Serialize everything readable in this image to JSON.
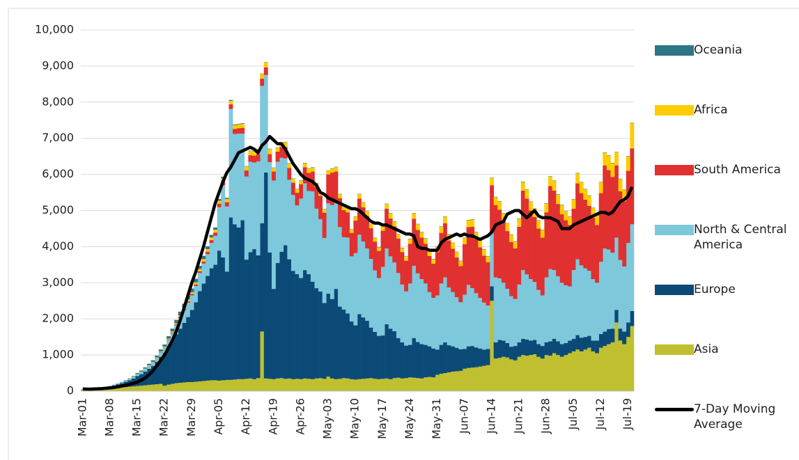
{
  "chart_data": {
    "type": "bar",
    "stacked": true,
    "categories": [
      "Mar-01",
      null,
      null,
      null,
      null,
      null,
      null,
      "Mar-08",
      null,
      null,
      null,
      null,
      null,
      null,
      "Mar-15",
      null,
      null,
      null,
      null,
      null,
      null,
      "Mar-22",
      null,
      null,
      null,
      null,
      null,
      null,
      "Mar-29",
      null,
      null,
      null,
      null,
      null,
      null,
      "Apr-05",
      null,
      null,
      null,
      null,
      null,
      null,
      "Apr-12",
      null,
      null,
      null,
      null,
      null,
      null,
      "Apr-19",
      null,
      null,
      null,
      null,
      null,
      null,
      "Apr-26",
      null,
      null,
      null,
      null,
      null,
      null,
      "May-03",
      null,
      null,
      null,
      null,
      null,
      null,
      "May-10",
      null,
      null,
      null,
      null,
      null,
      null,
      "May-17",
      null,
      null,
      null,
      null,
      null,
      null,
      "May-24",
      null,
      null,
      null,
      null,
      null,
      null,
      "May-31",
      null,
      null,
      null,
      null,
      null,
      null,
      "Jun-07",
      null,
      null,
      null,
      null,
      null,
      null,
      "Jun-14",
      null,
      null,
      null,
      null,
      null,
      null,
      "Jun-21",
      null,
      null,
      null,
      null,
      null,
      null,
      "Jun-28",
      null,
      null,
      null,
      null,
      null,
      null,
      "Jul-05",
      null,
      null,
      null,
      null,
      null,
      null,
      "Jul-12",
      null,
      null,
      null,
      null,
      null,
      null,
      "Jul-19",
      null
    ],
    "series": [
      {
        "name": "Asia",
        "color": "#bfbf30",
        "values": [
          50,
          45,
          45,
          50,
          55,
          60,
          60,
          70,
          80,
          90,
          100,
          110,
          120,
          130,
          140,
          150,
          160,
          170,
          180,
          190,
          200,
          150,
          180,
          200,
          220,
          230,
          240,
          250,
          250,
          260,
          270,
          280,
          290,
          300,
          300,
          290,
          300,
          310,
          310,
          320,
          330,
          330,
          340,
          350,
          330,
          360,
          1650,
          350,
          340,
          330,
          350,
          360,
          340,
          350,
          330,
          340,
          330,
          350,
          340,
          330,
          350,
          360,
          340,
          400,
          350,
          330,
          340,
          360,
          350,
          330,
          320,
          330,
          340,
          350,
          360,
          340,
          330,
          340,
          350,
          330,
          360,
          370,
          350,
          360,
          380,
          370,
          360,
          350,
          380,
          390,
          380,
          450,
          480,
          500,
          520,
          540,
          550,
          560,
          620,
          640,
          650,
          660,
          680,
          700,
          720,
          2500,
          900,
          920,
          950,
          930,
          880,
          850,
          950,
          1000,
          980,
          1000,
          1020,
          950,
          900,
          1000,
          980,
          1050,
          1000,
          950,
          1000,
          1050,
          1100,
          1150,
          1100,
          1150,
          1200,
          1100,
          1050,
          1200,
          1250,
          1300,
          1350,
          1900,
          1400,
          1300,
          1500,
          1800
        ]
      },
      {
        "name": "Europe",
        "color": "#0b4a77",
        "values": [
          0,
          5,
          10,
          15,
          20,
          30,
          40,
          60,
          80,
          100,
          120,
          150,
          180,
          220,
          280,
          320,
          380,
          450,
          520,
          620,
          750,
          900,
          1050,
          1200,
          1350,
          1500,
          1650,
          1800,
          2000,
          2200,
          2500,
          2700,
          2900,
          3100,
          3200,
          3600,
          3400,
          3000,
          4500,
          4300,
          4200,
          4400,
          3300,
          3500,
          3600,
          3400,
          3000,
          5700,
          3500,
          2500,
          3200,
          3500,
          3700,
          3300,
          3000,
          2900,
          2800,
          3000,
          2900,
          2700,
          2500,
          2400,
          2100,
          2300,
          2200,
          2500,
          2000,
          1900,
          1800,
          1600,
          1500,
          1800,
          1700,
          1600,
          1400,
          1300,
          1200,
          1200,
          1500,
          1400,
          1300,
          1100,
          1000,
          900,
          900,
          1100,
          1000,
          950,
          900,
          850,
          800,
          700,
          800,
          850,
          750,
          700,
          650,
          600,
          550,
          600,
          600,
          550,
          500,
          450,
          450,
          400,
          450,
          500,
          450,
          400,
          350,
          400,
          400,
          450,
          450,
          400,
          400,
          350,
          350,
          350,
          400,
          400,
          380,
          350,
          330,
          350,
          350,
          400,
          380,
          350,
          330,
          300,
          350,
          380,
          400,
          420,
          380,
          350,
          330,
          350,
          400,
          420
        ]
      },
      {
        "name": "North & Central America",
        "color": "#7ec8dc",
        "values": [
          5,
          5,
          5,
          5,
          5,
          10,
          10,
          10,
          10,
          15,
          20,
          25,
          30,
          40,
          50,
          60,
          70,
          80,
          90,
          100,
          120,
          150,
          180,
          200,
          250,
          300,
          350,
          400,
          400,
          450,
          500,
          550,
          600,
          700,
          800,
          1200,
          2000,
          1800,
          3000,
          2500,
          2600,
          2400,
          2300,
          2500,
          2400,
          2600,
          3800,
          2700,
          2500,
          3000,
          2800,
          2600,
          2400,
          2200,
          2100,
          1900,
          2200,
          2400,
          2300,
          2500,
          2200,
          2000,
          1800,
          2500,
          2600,
          2400,
          2200,
          2000,
          2100,
          1800,
          2000,
          2200,
          2100,
          2000,
          1900,
          1700,
          1600,
          1900,
          2100,
          2000,
          1900,
          1800,
          1600,
          1500,
          1700,
          2000,
          1900,
          1800,
          1700,
          1500,
          1400,
          1500,
          1700,
          1800,
          1600,
          1500,
          1400,
          1300,
          1500,
          1700,
          1600,
          1500,
          1400,
          1300,
          1200,
          1500,
          1800,
          1700,
          1600,
          1500,
          1400,
          1300,
          1600,
          1900,
          1800,
          1700,
          1600,
          1500,
          1400,
          1800,
          2000,
          1900,
          1800,
          1700,
          1600,
          1500,
          1900,
          2100,
          2000,
          1900,
          1800,
          1700,
          1600,
          2000,
          2300,
          2200,
          2100,
          2000,
          1900,
          1800,
          2200,
          2400
        ]
      },
      {
        "name": "South America",
        "color": "#e03030",
        "values": [
          0,
          0,
          0,
          0,
          0,
          0,
          0,
          0,
          0,
          0,
          0,
          1,
          1,
          1,
          1,
          2,
          3,
          5,
          5,
          8,
          10,
          10,
          15,
          20,
          25,
          30,
          35,
          40,
          40,
          45,
          50,
          60,
          70,
          80,
          90,
          100,
          110,
          120,
          130,
          140,
          150,
          160,
          170,
          180,
          190,
          200,
          200,
          210,
          220,
          250,
          280,
          300,
          320,
          330,
          340,
          350,
          400,
          450,
          500,
          550,
          600,
          650,
          700,
          800,
          900,
          850,
          800,
          750,
          700,
          650,
          900,
          1000,
          950,
          900,
          850,
          800,
          750,
          1000,
          1100,
          1050,
          1000,
          950,
          900,
          850,
          1100,
          1300,
          1200,
          1150,
          1100,
          1000,
          950,
          1200,
          1400,
          1500,
          1300,
          1200,
          1100,
          1000,
          1400,
          1600,
          1700,
          1500,
          1400,
          1300,
          1200,
          1300,
          2000,
          1900,
          1700,
          1600,
          1500,
          1400,
          1600,
          2200,
          2100,
          1900,
          1800,
          1700,
          1600,
          1800,
          2300,
          2200,
          2000,
          1900,
          1800,
          1700,
          1700,
          2100,
          2000,
          1900,
          1800,
          1700,
          1600,
          1900,
          2300,
          2200,
          2100,
          2000,
          1900,
          1800,
          2000,
          2100
        ]
      },
      {
        "name": "Africa",
        "color": "#ffcc00",
        "values": [
          0,
          0,
          0,
          0,
          0,
          1,
          1,
          2,
          2,
          3,
          3,
          4,
          5,
          5,
          6,
          8,
          10,
          12,
          14,
          16,
          18,
          20,
          25,
          30,
          35,
          40,
          45,
          50,
          50,
          55,
          60,
          65,
          70,
          75,
          80,
          80,
          85,
          90,
          95,
          100,
          105,
          110,
          110,
          115,
          120,
          125,
          130,
          135,
          140,
          100,
          110,
          120,
          130,
          120,
          110,
          100,
          100,
          110,
          120,
          110,
          100,
          100,
          90,
          100,
          110,
          120,
          110,
          100,
          100,
          90,
          110,
          120,
          130,
          120,
          110,
          100,
          100,
          120,
          130,
          140,
          130,
          120,
          110,
          110,
          130,
          150,
          160,
          150,
          140,
          130,
          120,
          150,
          170,
          180,
          170,
          160,
          150,
          140,
          170,
          190,
          200,
          190,
          180,
          170,
          160,
          200,
          220,
          230,
          220,
          210,
          200,
          190,
          220,
          240,
          250,
          240,
          230,
          220,
          210,
          240,
          260,
          270,
          260,
          250,
          240,
          230,
          260,
          280,
          300,
          290,
          280,
          270,
          260,
          300,
          350,
          400,
          380,
          360,
          340,
          320,
          400,
          700
        ]
      },
      {
        "name": "Oceania",
        "color": "#2e7585",
        "values": [
          1,
          1,
          2,
          2,
          3,
          3,
          4,
          5,
          6,
          8,
          10,
          12,
          15,
          20,
          25,
          30,
          35,
          40,
          45,
          50,
          55,
          60,
          70,
          80,
          90,
          100,
          100,
          100,
          100,
          100,
          90,
          90,
          80,
          70,
          60,
          50,
          40,
          30,
          25,
          20,
          15,
          15,
          10,
          10,
          10,
          10,
          10,
          10,
          10,
          10,
          10,
          10,
          10,
          10,
          10,
          10,
          10,
          10,
          10,
          10,
          10,
          10,
          10,
          10,
          10,
          10,
          10,
          10,
          10,
          10,
          10,
          10,
          10,
          10,
          10,
          10,
          10,
          10,
          10,
          10,
          10,
          10,
          10,
          10,
          10,
          10,
          10,
          10,
          10,
          10,
          10,
          10,
          10,
          10,
          10,
          10,
          10,
          10,
          10,
          10,
          10,
          10,
          10,
          10,
          10,
          10,
          10,
          10,
          10,
          10,
          10,
          10,
          10,
          10,
          10,
          10,
          10,
          10,
          10,
          10,
          10,
          10,
          10,
          10,
          10,
          10,
          10,
          10,
          10,
          10,
          10,
          10,
          10,
          10,
          10,
          10,
          10,
          10,
          10,
          10,
          10,
          10
        ]
      },
      {
        "name": "7-Day Moving Average",
        "type": "line",
        "color": "#000000",
        "values": [
          60,
          55,
          55,
          60,
          65,
          70,
          80,
          90,
          100,
          120,
          140,
          160,
          190,
          220,
          250,
          300,
          360,
          450,
          560,
          700,
          850,
          1000,
          1200,
          1400,
          1650,
          1950,
          2300,
          2650,
          3000,
          3300,
          3650,
          4000,
          4400,
          4800,
          5200,
          5500,
          5800,
          6050,
          6200,
          6400,
          6600,
          6650,
          6700,
          6750,
          6700,
          6600,
          6800,
          6900,
          7050,
          6950,
          6850,
          6850,
          6700,
          6500,
          6300,
          6150,
          6000,
          5900,
          5850,
          5800,
          5700,
          5500,
          5450,
          5350,
          5300,
          5250,
          5200,
          5150,
          5100,
          5050,
          5050,
          5000,
          4900,
          4800,
          4700,
          4650,
          4650,
          4600,
          4600,
          4550,
          4500,
          4450,
          4400,
          4350,
          4350,
          4300,
          4000,
          3950,
          3950,
          3900,
          3900,
          3900,
          4100,
          4200,
          4250,
          4300,
          4350,
          4300,
          4350,
          4300,
          4300,
          4250,
          4200,
          4250,
          4300,
          4400,
          4600,
          4650,
          4700,
          4900,
          4950,
          5000,
          5000,
          4900,
          4800,
          4900,
          5000,
          4850,
          4800,
          4800,
          4800,
          4750,
          4700,
          4500,
          4500,
          4500,
          4600,
          4650,
          4700,
          4750,
          4800,
          4850,
          4900,
          4950,
          4950,
          4900,
          4950,
          5100,
          5250,
          5300,
          5400,
          5650
        ]
      }
    ],
    "ylim": [
      0,
      10000
    ],
    "yticks": [
      0,
      {
        "value": 1000,
        "label": "1,000"
      },
      {
        "value": 2000,
        "label": "2,000"
      },
      {
        "value": 3000,
        "label": "3,000"
      },
      {
        "value": 4000,
        "label": "4,000"
      },
      {
        "value": 5000,
        "label": "5,000"
      },
      {
        "value": 6000,
        "label": "6,000"
      },
      {
        "value": 7000,
        "label": "7,000"
      },
      {
        "value": 8000,
        "label": "8,000"
      },
      {
        "value": 9000,
        "label": "9,000"
      },
      {
        "value": 10000,
        "label": "10,000"
      }
    ],
    "grid": true,
    "legend": "right"
  }
}
